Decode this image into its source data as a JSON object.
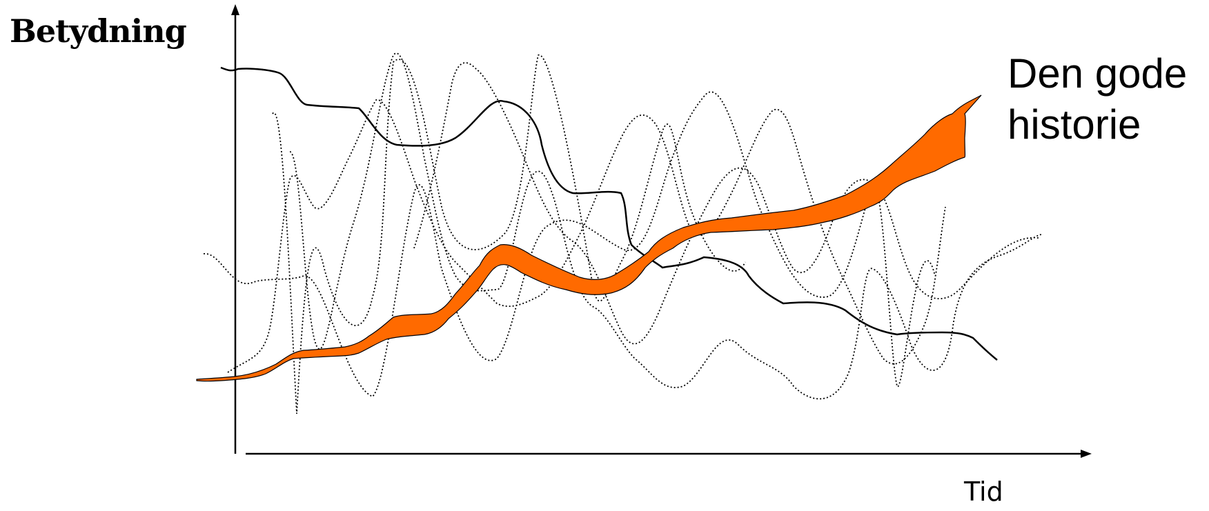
{
  "axes": {
    "y_label": "Betydning",
    "x_label": "Tid"
  },
  "annotation": {
    "line1": "Den gode",
    "line2": "historie"
  },
  "colors": {
    "highlight_band": "#ff6a00",
    "lines": "#000000"
  }
}
